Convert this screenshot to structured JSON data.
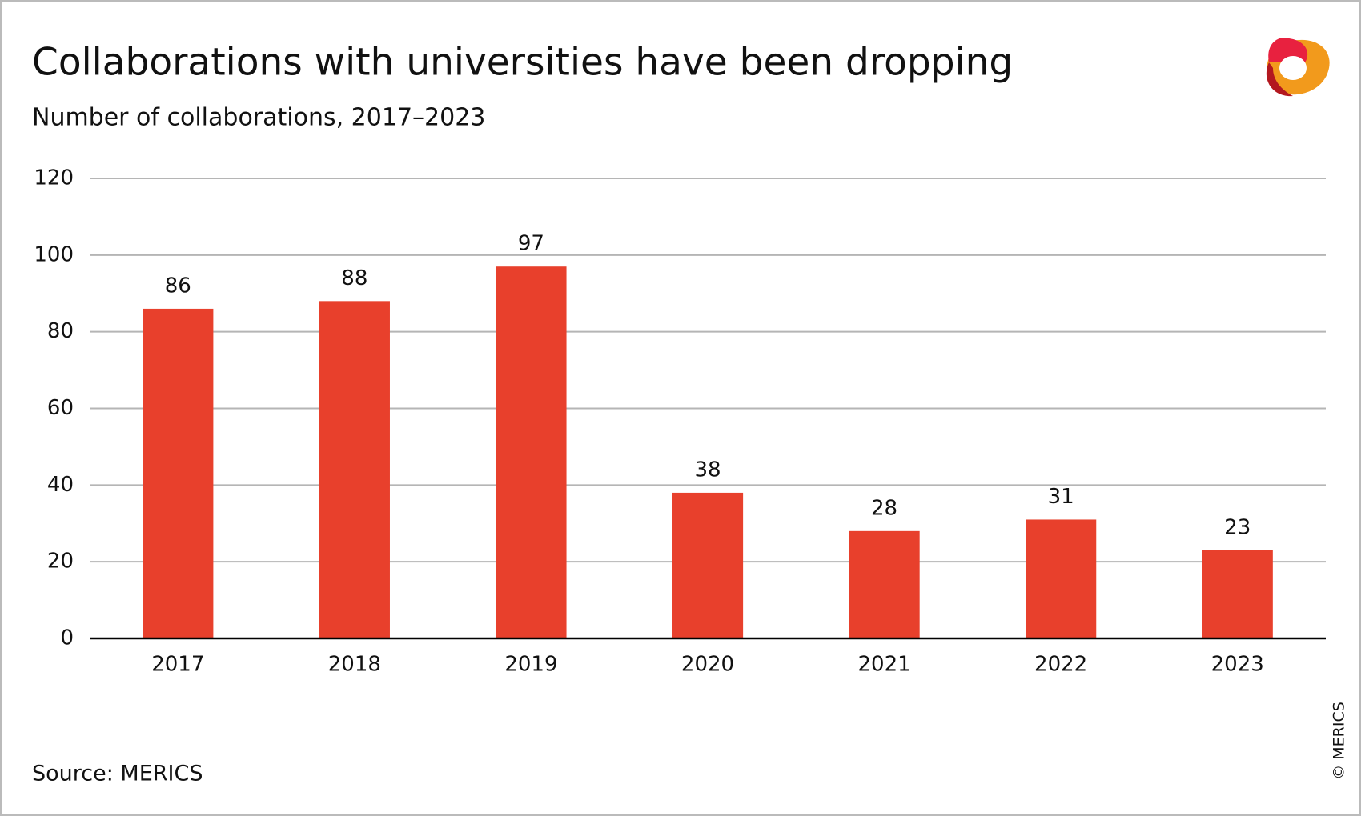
{
  "chart_data": {
    "type": "bar",
    "title": "Collaborations with universities have been dropping",
    "subtitle": "Number of collaborations, 2017–2023",
    "categories": [
      "2017",
      "2018",
      "2019",
      "2020",
      "2021",
      "2022",
      "2023"
    ],
    "values": [
      86,
      88,
      97,
      38,
      28,
      31,
      23
    ],
    "color": "#e8402c",
    "ylim": [
      0,
      120
    ],
    "yticks": [
      0,
      20,
      40,
      60,
      80,
      100,
      120
    ],
    "grid": true,
    "source": "Source: MERICS",
    "copyright": "© MERICS"
  }
}
